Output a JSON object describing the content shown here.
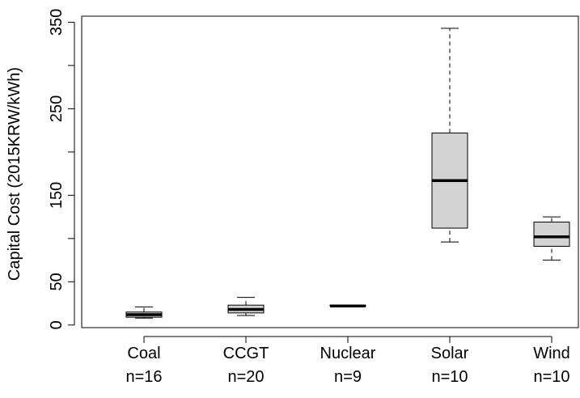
{
  "chart_data": {
    "type": "boxplot",
    "title": "",
    "xlabel": "",
    "ylabel": "Capital Cost (2015KRW/kWh)",
    "ylim": [
      -3,
      357
    ],
    "yticks": [
      0,
      50,
      150,
      250,
      350
    ],
    "grid": false,
    "box_fill": "#d3d3d3",
    "categories": [
      {
        "name": "Coal",
        "n_label": "n=16",
        "whisker_low": 8,
        "q1": 9,
        "median": 12,
        "q3": 15,
        "whisker_high": 21
      },
      {
        "name": "CCGT",
        "n_label": "n=20",
        "whisker_low": 11,
        "q1": 14,
        "median": 18,
        "q3": 23,
        "whisker_high": 32
      },
      {
        "name": "Nuclear",
        "n_label": "n=9",
        "whisker_low": 21,
        "q1": 22,
        "median": 22,
        "q3": 23,
        "whisker_high": 23
      },
      {
        "name": "Solar",
        "n_label": "n=10",
        "whisker_low": 96,
        "q1": 112,
        "median": 167,
        "q3": 222,
        "whisker_high": 343
      },
      {
        "name": "Wind",
        "n_label": "n=10",
        "whisker_low": 75,
        "q1": 91,
        "median": 102,
        "q3": 119,
        "whisker_high": 125
      }
    ]
  }
}
